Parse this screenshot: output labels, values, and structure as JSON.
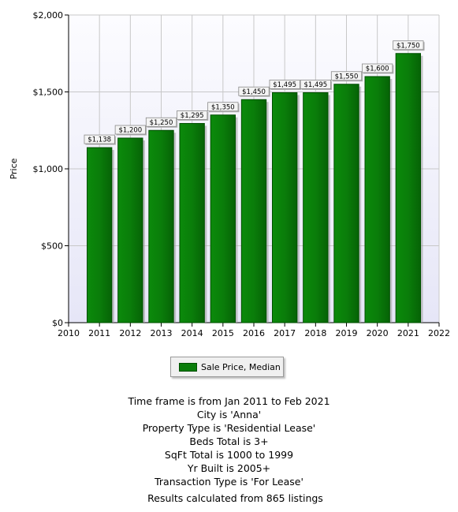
{
  "chart_data": {
    "type": "bar",
    "categories": [
      "2011",
      "2012",
      "2013",
      "2014",
      "2015",
      "2016",
      "2017",
      "2018",
      "2019",
      "2020",
      "2021"
    ],
    "series": [
      {
        "name": "Sale Price, Median",
        "values": [
          1138,
          1200,
          1250,
          1295,
          1350,
          1450,
          1495,
          1495,
          1550,
          1600,
          1750
        ]
      }
    ],
    "value_labels": [
      "$1,138",
      "$1,200",
      "$1,250",
      "$1,295",
      "$1,350",
      "$1,450",
      "$1,495",
      "$1,495",
      "$1,550",
      "$1,600",
      "$1,750"
    ],
    "xlim": [
      2010,
      2022
    ],
    "x_ticks": [
      "2010",
      "2011",
      "2012",
      "2013",
      "2014",
      "2015",
      "2016",
      "2017",
      "2018",
      "2019",
      "2020",
      "2021",
      "2022"
    ],
    "ylim": [
      0,
      2000
    ],
    "y_ticks": [
      0,
      500,
      1000,
      1500,
      2000
    ],
    "y_tick_labels": [
      "$0",
      "$500",
      "$1,000",
      "$1,500",
      "$2,000"
    ],
    "ylabel": "Price",
    "xlabel": "",
    "title": "",
    "grid": true,
    "legend_position": "bottom",
    "colors": {
      "bar": "#0a7d0a",
      "bar_edge": "#004f00",
      "plot_bg_top": "#fcfcff",
      "plot_bg_bottom": "#e6e6f7",
      "grid": "#c8c8c8"
    }
  },
  "legend": {
    "label": "Sale Price, Median"
  },
  "criteria": [
    "Time frame is from Jan 2011 to Feb 2021",
    "City is 'Anna'",
    "Property Type is 'Residential Lease'",
    "Beds Total is 3+",
    "SqFt Total is 1000 to 1999",
    "Yr Built is 2005+",
    "Transaction Type is 'For Lease'"
  ],
  "results": "Results calculated from 865 listings"
}
